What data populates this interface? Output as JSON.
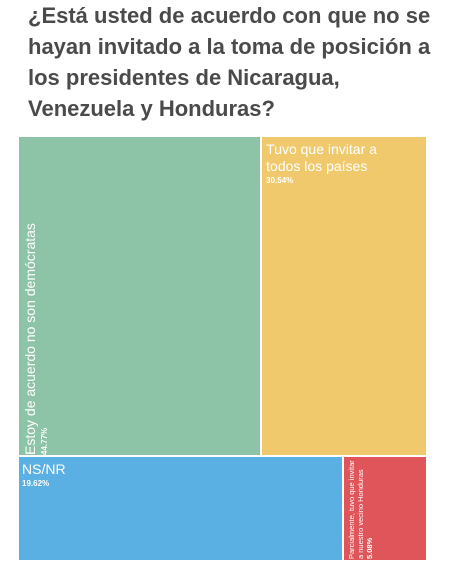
{
  "title": "¿Está usted de acuerdo con que no se hayan invitado a la toma de posición a los presidentes de Nicaragua, Venezuela y Honduras?",
  "chart_data": {
    "type": "treemap",
    "title": "¿Está usted de acuerdo con que no se hayan invitado a la toma de posición a los presidentes de Nicaragua, Venezuela y Honduras?",
    "items": [
      {
        "label": "Estoy de acuerdo no son demócratas",
        "value": 44.77,
        "display": "44.77%",
        "color": "#8dc3a7"
      },
      {
        "label": "Tuvo que invitar a todos los países",
        "value": 30.54,
        "display": "30.54%",
        "color": "#efc96b"
      },
      {
        "label": "NS/NR",
        "value": 19.62,
        "display": "19.62%",
        "color": "#5ab0e3"
      },
      {
        "label": "Parcialmente, tuvo que invitar a nuestro vecino Honduras",
        "value": 5.08,
        "display": "5.08%",
        "color": "#e0555a"
      }
    ]
  }
}
